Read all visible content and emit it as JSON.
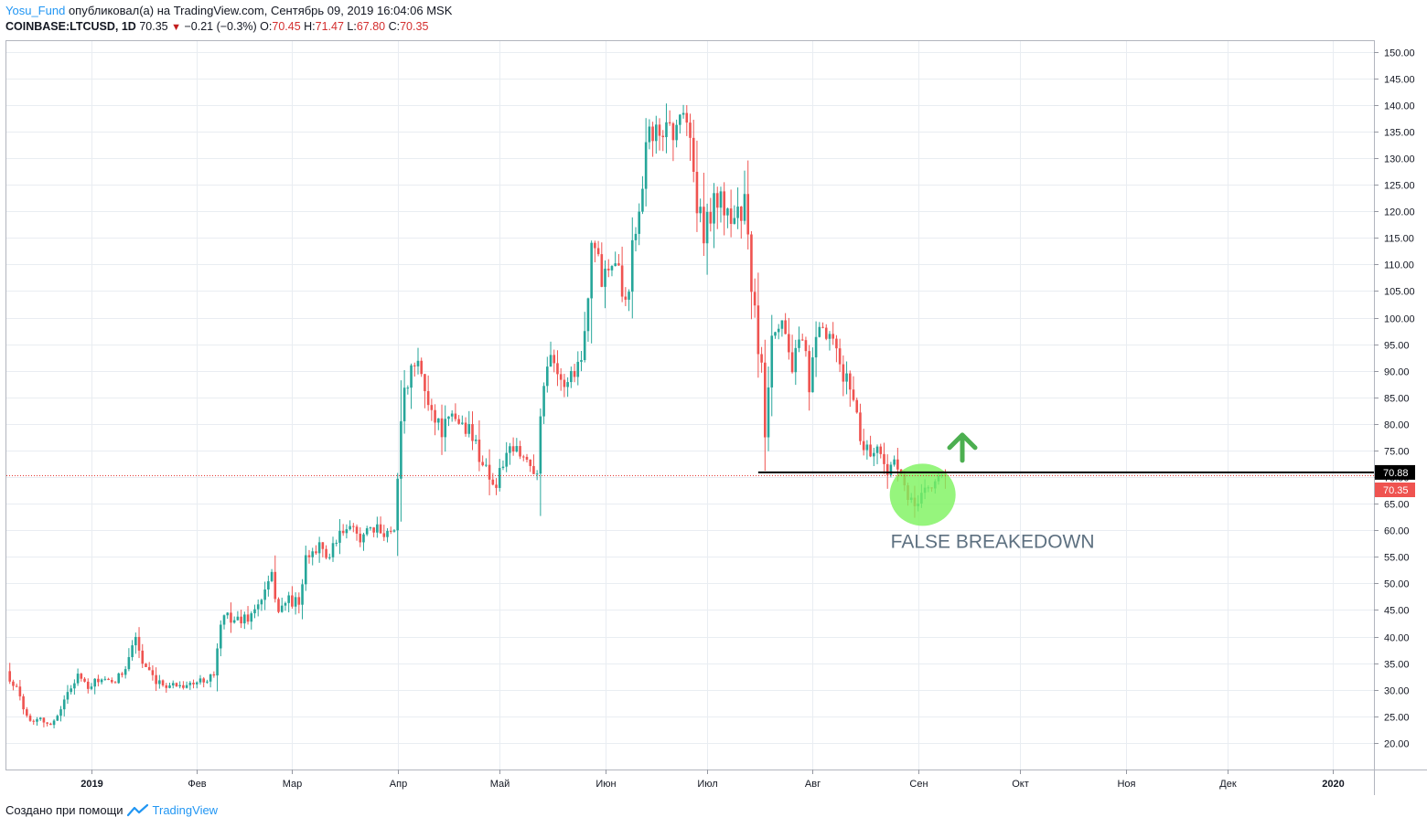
{
  "header": {
    "author": "Yosu_Fund",
    "published_text": "опубликовал(а) на TradingView.com, Сентябрь 09, 2019 16:04:06 MSK",
    "symbol": "COINBASE:LTCUSD, 1D",
    "last": "70.35",
    "change_arrow": "▼",
    "change": "−0.21 (−0.3%)",
    "o_label": "O:",
    "o": "70.45",
    "h_label": "H:",
    "h": "71.47",
    "l_label": "L:",
    "l": "67.80",
    "c_label": "C:",
    "c": "70.35"
  },
  "footer": {
    "created_with": "Создано при помощи",
    "brand": "TradingView"
  },
  "colors": {
    "up": "#26a69a",
    "down": "#ef5350",
    "grid": "#e9edf2",
    "level_line": "#000000",
    "last_price_line": "#e53935",
    "highlight": "#7cf25c",
    "arrow": "#4caf50",
    "annotation_text": "#5d7080"
  },
  "chart_data": {
    "type": "candlestick",
    "symbol": "COINBASE:LTCUSD",
    "timeframe": "1D",
    "y_axis": {
      "ylim": [
        15,
        152
      ],
      "ticks": [
        20,
        25,
        30,
        35,
        40,
        45,
        50,
        55,
        60,
        65,
        70,
        75,
        80,
        85,
        90,
        95,
        100,
        105,
        110,
        115,
        120,
        125,
        130,
        135,
        140,
        145,
        150
      ],
      "tick_labels": [
        "20.00",
        "25.00",
        "30.00",
        "35.00",
        "40.00",
        "45.00",
        "50.00",
        "55.00",
        "60.00",
        "65.00",
        "70.00",
        "75.00",
        "80.00",
        "85.00",
        "90.00",
        "95.00",
        "100.00",
        "105.00",
        "110.00",
        "115.00",
        "120.00",
        "125.00",
        "130.00",
        "135.00",
        "140.00",
        "145.00",
        "150.00"
      ]
    },
    "x_axis": {
      "start": "2018-12-07",
      "end": "2020-01-13",
      "ticks": [
        {
          "date": "2019-01-01",
          "label": "2019",
          "bold": true
        },
        {
          "date": "2019-02-01",
          "label": "Фев"
        },
        {
          "date": "2019-03-01",
          "label": "Мар"
        },
        {
          "date": "2019-04-01",
          "label": "Апр"
        },
        {
          "date": "2019-05-01",
          "label": "Май"
        },
        {
          "date": "2019-06-01",
          "label": "Июн"
        },
        {
          "date": "2019-07-01",
          "label": "Июл"
        },
        {
          "date": "2019-08-01",
          "label": "Авг"
        },
        {
          "date": "2019-09-01",
          "label": "Сен"
        },
        {
          "date": "2019-10-01",
          "label": "Окт"
        },
        {
          "date": "2019-11-01",
          "label": "Ноя"
        },
        {
          "date": "2019-12-01",
          "label": "Дек"
        },
        {
          "date": "2020-01-01",
          "label": "2020",
          "bold": true
        }
      ]
    },
    "close_path": [
      [
        "2018-12-07",
        33.5
      ],
      [
        "2018-12-10",
        30
      ],
      [
        "2018-12-14",
        24
      ],
      [
        "2018-12-17",
        25
      ],
      [
        "2018-12-20",
        23
      ],
      [
        "2018-12-24",
        28
      ],
      [
        "2018-12-28",
        33
      ],
      [
        "2018-12-31",
        30
      ],
      [
        "2019-01-03",
        32
      ],
      [
        "2019-01-07",
        31
      ],
      [
        "2019-01-10",
        33
      ],
      [
        "2019-01-14",
        40
      ],
      [
        "2019-01-16",
        35
      ],
      [
        "2019-01-20",
        31
      ],
      [
        "2019-01-26",
        31
      ],
      [
        "2019-01-31",
        31
      ],
      [
        "2019-02-03",
        32
      ],
      [
        "2019-02-06",
        33
      ],
      [
        "2019-02-08",
        42
      ],
      [
        "2019-02-10",
        44
      ],
      [
        "2019-02-13",
        43
      ],
      [
        "2019-02-17",
        44
      ],
      [
        "2019-02-20",
        47
      ],
      [
        "2019-02-23",
        51
      ],
      [
        "2019-02-25",
        45
      ],
      [
        "2019-02-28",
        47
      ],
      [
        "2019-03-03",
        46
      ],
      [
        "2019-03-05",
        54
      ],
      [
        "2019-03-08",
        57
      ],
      [
        "2019-03-12",
        55
      ],
      [
        "2019-03-16",
        60
      ],
      [
        "2019-03-22",
        59
      ],
      [
        "2019-03-27",
        60
      ],
      [
        "2019-03-31",
        60
      ],
      [
        "2019-04-02",
        82
      ],
      [
        "2019-04-04",
        88
      ],
      [
        "2019-04-07",
        91
      ],
      [
        "2019-04-10",
        84
      ],
      [
        "2019-04-14",
        79
      ],
      [
        "2019-04-18",
        81
      ],
      [
        "2019-04-22",
        79
      ],
      [
        "2019-04-26",
        73
      ],
      [
        "2019-04-30",
        68
      ],
      [
        "2019-05-02",
        73
      ],
      [
        "2019-05-06",
        75
      ],
      [
        "2019-05-09",
        73
      ],
      [
        "2019-05-12",
        72
      ],
      [
        "2019-05-14",
        88
      ],
      [
        "2019-05-16",
        95
      ],
      [
        "2019-05-19",
        87
      ],
      [
        "2019-05-24",
        91
      ],
      [
        "2019-05-26",
        97
      ],
      [
        "2019-05-28",
        115
      ],
      [
        "2019-05-31",
        108
      ],
      [
        "2019-06-04",
        113
      ],
      [
        "2019-06-07",
        102
      ],
      [
        "2019-06-09",
        113
      ],
      [
        "2019-06-12",
        127
      ],
      [
        "2019-06-14",
        137
      ],
      [
        "2019-06-17",
        132
      ],
      [
        "2019-06-19",
        138
      ],
      [
        "2019-06-22",
        134
      ],
      [
        "2019-06-24",
        141
      ],
      [
        "2019-06-26",
        133
      ],
      [
        "2019-06-28",
        121
      ],
      [
        "2019-06-30",
        115
      ],
      [
        "2019-07-03",
        123
      ],
      [
        "2019-07-05",
        121
      ],
      [
        "2019-07-07",
        120
      ],
      [
        "2019-07-10",
        119
      ],
      [
        "2019-07-12",
        121
      ],
      [
        "2019-07-15",
        100
      ],
      [
        "2019-07-17",
        90
      ],
      [
        "2019-07-18",
        79
      ],
      [
        "2019-07-20",
        98
      ],
      [
        "2019-07-23",
        100
      ],
      [
        "2019-07-26",
        91
      ],
      [
        "2019-07-29",
        95
      ],
      [
        "2019-07-31",
        88
      ],
      [
        "2019-08-03",
        97
      ],
      [
        "2019-08-06",
        96
      ],
      [
        "2019-08-10",
        89
      ],
      [
        "2019-08-13",
        86
      ],
      [
        "2019-08-15",
        77
      ],
      [
        "2019-08-18",
        75
      ],
      [
        "2019-08-20",
        75
      ],
      [
        "2019-08-23",
        72
      ],
      [
        "2019-08-25",
        72
      ],
      [
        "2019-08-27",
        70.5
      ],
      [
        "2019-08-29",
        64.5
      ],
      [
        "2019-08-31",
        65
      ],
      [
        "2019-09-03",
        68
      ],
      [
        "2019-09-05",
        67.5
      ],
      [
        "2019-09-07",
        70.5
      ],
      [
        "2019-09-09",
        70.35
      ]
    ],
    "last_price": 70.35,
    "last_price_label": "70.35",
    "level": 70.88,
    "level_label": "70.88",
    "level_from": "2019-07-16",
    "level_to": "2020-01-13",
    "annotation": {
      "text": "FALSE BREAKEDOWN",
      "anchor_date": "2019-09-01",
      "anchor_price": 66.5,
      "arrow_date": "2019-09-14",
      "arrow_price": 74.5
    }
  }
}
